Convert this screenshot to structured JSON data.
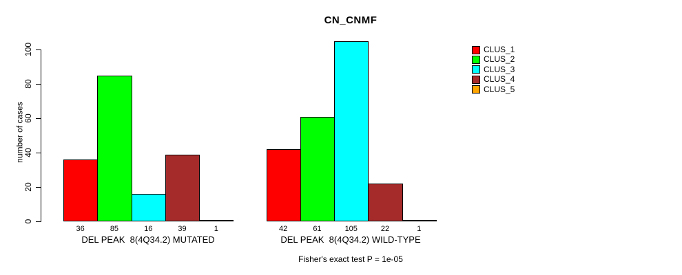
{
  "chart_data": {
    "type": "bar",
    "title": "CN_CNMF",
    "ylabel": "number of cases",
    "xlabel": "",
    "ylim": [
      0,
      105
    ],
    "yticks": [
      0,
      20,
      40,
      60,
      80,
      100
    ],
    "grid": false,
    "legend_position": "top-right-inside",
    "categories": [
      "DEL PEAK  8(4Q34.2) MUTATED",
      "DEL PEAK  8(4Q34.2) WILD-TYPE"
    ],
    "series": [
      {
        "name": "CLUS_1",
        "color": "#FF0000",
        "values": [
          36,
          42
        ]
      },
      {
        "name": "CLUS_2",
        "color": "#00FF00",
        "values": [
          85,
          61
        ]
      },
      {
        "name": "CLUS_3",
        "color": "#00FFFF",
        "values": [
          16,
          105
        ]
      },
      {
        "name": "CLUS_4",
        "color": "#A52A2A",
        "values": [
          39,
          22
        ]
      },
      {
        "name": "CLUS_5",
        "color": "#FFA500",
        "values": [
          1,
          1
        ]
      }
    ],
    "bar_value_labels_shown": true,
    "footnote": "Fisher's exact test P = 1e-05"
  }
}
